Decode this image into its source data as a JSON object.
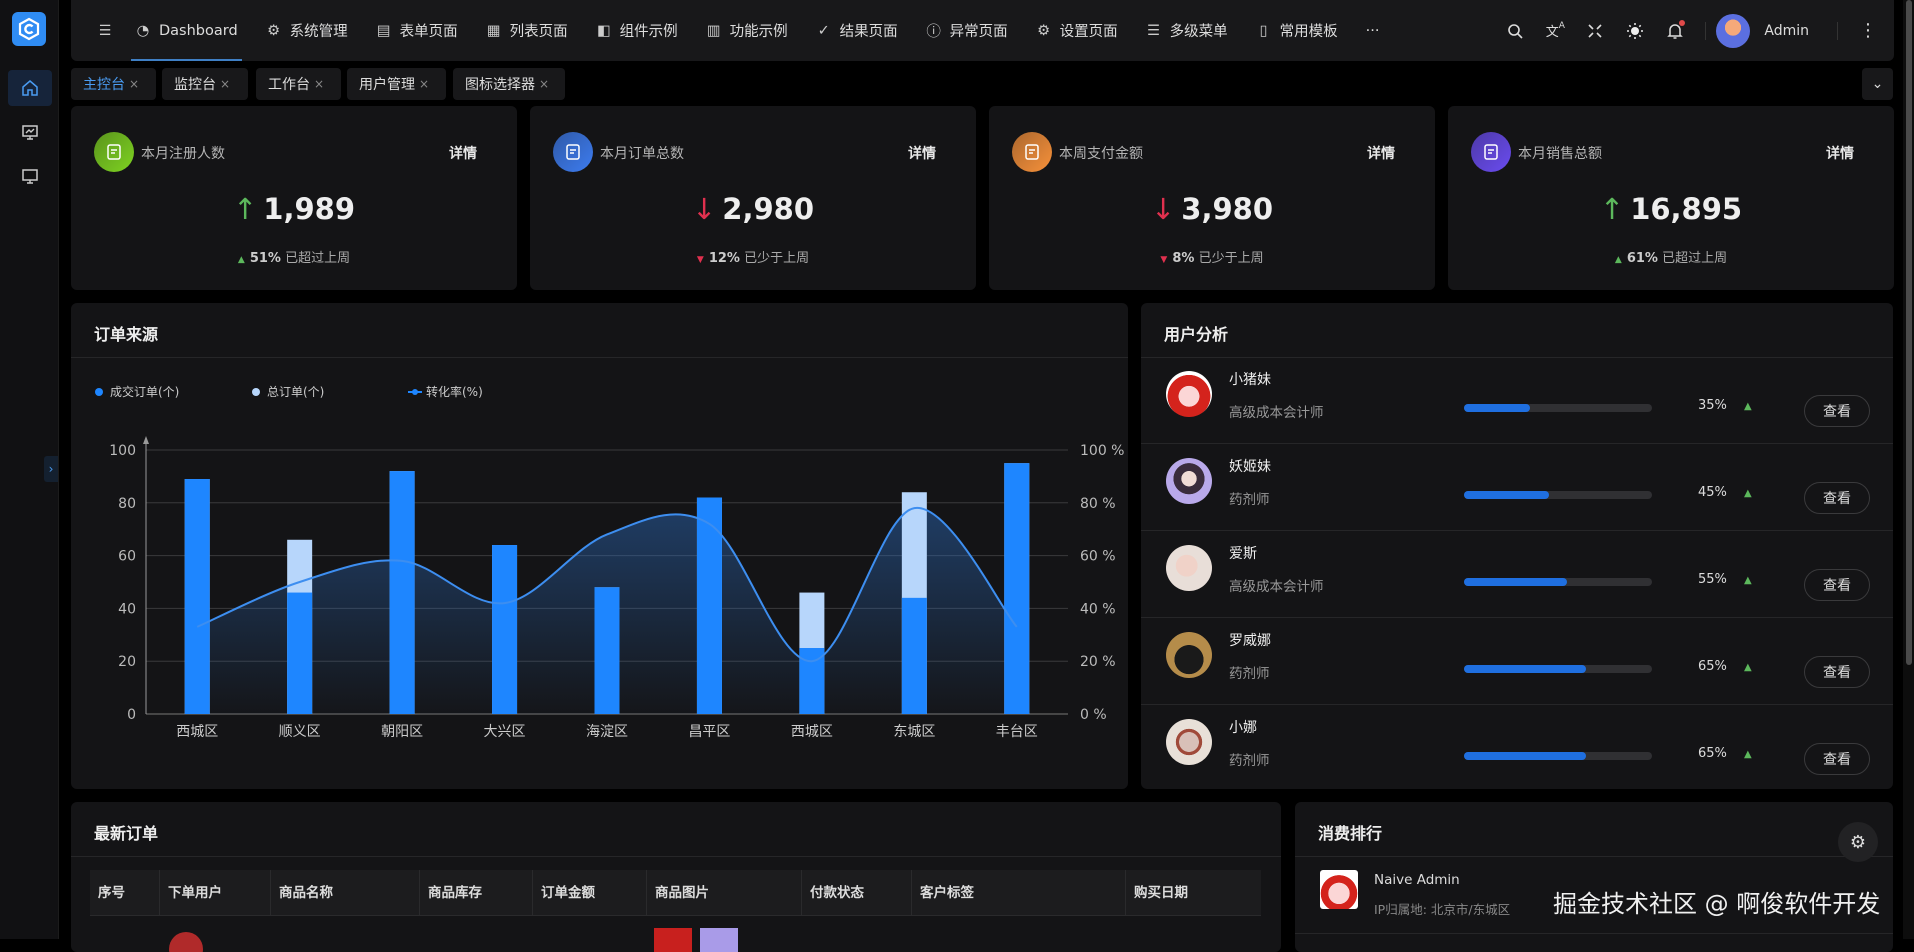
{
  "header": {
    "nav": [
      {
        "label": "Dashboard",
        "icon": "dashboard-icon"
      },
      {
        "label": "系统管理",
        "icon": "gear-icon"
      },
      {
        "label": "表单页面",
        "icon": "form-icon"
      },
      {
        "label": "列表页面",
        "icon": "table-icon"
      },
      {
        "label": "组件示例",
        "icon": "component-icon"
      },
      {
        "label": "功能示例",
        "icon": "function-icon"
      },
      {
        "label": "结果页面",
        "icon": "check-circle-icon"
      },
      {
        "label": "异常页面",
        "icon": "alert-circle-icon"
      },
      {
        "label": "设置页面",
        "icon": "gear-icon"
      },
      {
        "label": "多级菜单",
        "icon": "menu-icon"
      },
      {
        "label": "常用模板",
        "icon": "template-icon"
      }
    ],
    "more": "···",
    "user": "Admin"
  },
  "tabs": [
    {
      "label": "主控台",
      "active": true
    },
    {
      "label": "监控台"
    },
    {
      "label": "工作台"
    },
    {
      "label": "用户管理"
    },
    {
      "label": "图标选择器"
    }
  ],
  "tab_close": "×",
  "stats": [
    {
      "label": "本月注册人数",
      "detail": "详情",
      "value": "1,989",
      "trend": "up",
      "pct": "51%",
      "note": "已超过上周",
      "color": "#7ed321"
    },
    {
      "label": "本月订单总数",
      "detail": "详情",
      "value": "2,980",
      "trend": "down",
      "pct": "12%",
      "note": "已少于上周",
      "color": "#3d7cf0"
    },
    {
      "label": "本周支付金额",
      "detail": "详情",
      "value": "3,980",
      "trend": "down",
      "pct": "8%",
      "note": "已少于上周",
      "color": "#f7913a"
    },
    {
      "label": "本月销售总额",
      "detail": "详情",
      "value": "16,895",
      "trend": "up",
      "pct": "61%",
      "note": "已超过上周",
      "color": "#6a4cf0"
    }
  ],
  "trend_arrows": {
    "up": "↑",
    "down": "↓",
    "up_small": "▲",
    "down_small": "▼"
  },
  "colors": {
    "up": "#5cb85c",
    "down": "#e0304e",
    "primary": "#1e86ff",
    "light_bar": "#b7d6fb"
  },
  "orders_card": {
    "title": "订单来源"
  },
  "chart_data": {
    "type": "bar",
    "categories": [
      "西城区",
      "顺义区",
      "朝阳区",
      "大兴区",
      "海淀区",
      "昌平区",
      "西城区",
      "东城区",
      "丰台区"
    ],
    "series": [
      {
        "name": "成交订单(个)",
        "type": "bar",
        "values": [
          89,
          46,
          92,
          64,
          48,
          82,
          25,
          44,
          95
        ]
      },
      {
        "name": "总订单(个)",
        "type": "bar",
        "values": [
          89,
          66,
          92,
          64,
          48,
          82,
          46,
          84,
          95
        ]
      },
      {
        "name": "转化率(%)",
        "type": "line",
        "smooth": true,
        "area": true,
        "values": [
          33,
          50,
          58,
          42,
          68,
          72,
          20,
          78,
          33
        ]
      }
    ],
    "y_left": {
      "min": 0,
      "max": 100,
      "ticks": [
        "0",
        "20",
        "40",
        "60",
        "80",
        "100"
      ]
    },
    "y_right": {
      "min": 0,
      "max": 100,
      "ticks": [
        "0 %",
        "20 %",
        "40 %",
        "60 %",
        "80 %",
        "100 %"
      ]
    },
    "grid": true,
    "legend": "top-left"
  },
  "users_card": {
    "title": "用户分析",
    "view_label": "查看",
    "users": [
      {
        "name": "小猪妹",
        "role": "高级成本会计师",
        "progress": 35,
        "pct": "35%"
      },
      {
        "name": "妖姬妹",
        "role": "药剂师",
        "progress": 45,
        "pct": "45%"
      },
      {
        "name": "爱斯",
        "role": "高级成本会计师",
        "progress": 55,
        "pct": "55%"
      },
      {
        "name": "罗威娜",
        "role": "药剂师",
        "progress": 65,
        "pct": "65%"
      },
      {
        "name": "小娜",
        "role": "药剂师",
        "progress": 65,
        "pct": "65%"
      }
    ]
  },
  "latest_orders": {
    "title": "最新订单",
    "columns": [
      "序号",
      "下单用户",
      "商品名称",
      "商品库存",
      "订单金额",
      "商品图片",
      "付款状态",
      "客户标签",
      "购买日期"
    ]
  },
  "ranking": {
    "title": "消费排行",
    "items": [
      {
        "name": "Naive Admin",
        "location": "IP归属地: 北京市/东城区"
      }
    ]
  },
  "watermark": "掘金技术社区 @ 啊俊软件开发"
}
